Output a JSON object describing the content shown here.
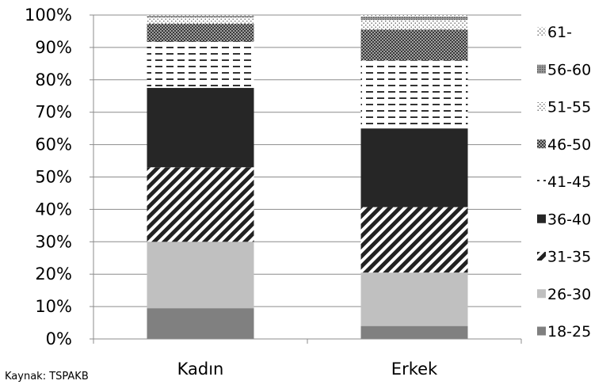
{
  "chart_data": {
    "type": "bar",
    "stacked": true,
    "percent": true,
    "categories": [
      "Kadın",
      "Erkek"
    ],
    "ylim": [
      0,
      100
    ],
    "yticks": [
      "0%",
      "10%",
      "20%",
      "30%",
      "40%",
      "50%",
      "60%",
      "70%",
      "80%",
      "90%",
      "100%"
    ],
    "grid": true,
    "legend": "right",
    "series": [
      {
        "name": "18-25",
        "values": [
          9.5,
          4.0
        ],
        "pattern": "solid",
        "color": "#808080"
      },
      {
        "name": "26-30",
        "values": [
          20.5,
          16.5
        ],
        "pattern": "solid",
        "color": "#c0c0c0"
      },
      {
        "name": "31-35",
        "values": [
          23.0,
          20.2
        ],
        "pattern": "diagonal",
        "color": "#222222"
      },
      {
        "name": "36-40",
        "values": [
          24.5,
          24.3
        ],
        "pattern": "solid",
        "color": "#262626"
      },
      {
        "name": "41-45",
        "values": [
          14.3,
          21.0
        ],
        "pattern": "dashes",
        "color": "#333333"
      },
      {
        "name": "46-50",
        "values": [
          5.5,
          9.5
        ],
        "pattern": "checker",
        "color": "#404040"
      },
      {
        "name": "51-55",
        "values": [
          2.0,
          3.0
        ],
        "pattern": "dots",
        "color": "#777777"
      },
      {
        "name": "56-60",
        "values": [
          0.5,
          1.0
        ],
        "pattern": "fine",
        "color": "#666666"
      },
      {
        "name": "61-",
        "values": [
          0.2,
          0.5
        ],
        "pattern": "dots",
        "color": "#999999"
      }
    ]
  },
  "source_note": "Kaynak: TSPAKB"
}
